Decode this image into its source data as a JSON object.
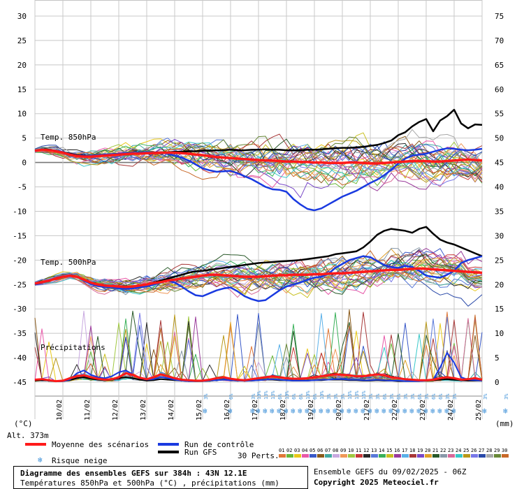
{
  "chart_data": {
    "type": "line",
    "title": "Diagramme des ensembles GEFS sur 384h : 43N 12.1E",
    "subtitle": "Températures 850hPa et 500hPa (°C) , précipitations (mm)",
    "y_left_ticks": [
      "30",
      "25",
      "20",
      "15",
      "10",
      "5",
      "0",
      "-5",
      "-10",
      "-15",
      "-20",
      "-25",
      "-30",
      "-35",
      "-40",
      "-45"
    ],
    "y_left_range": [
      -45,
      30
    ],
    "y_right_ticks": [
      "75",
      "70",
      "65",
      "60",
      "55",
      "50",
      "45",
      "40",
      "35",
      "30",
      "25",
      "20",
      "15",
      "10",
      "5",
      "0"
    ],
    "y_right_range": [
      0,
      75
    ],
    "y_left_unit": "(°C)",
    "y_right_unit": "(mm)",
    "altitude": "Alt. 373m",
    "x_tick_labels": [
      "10/02",
      "11/02",
      "12/02",
      "13/02",
      "14/02",
      "15/02",
      "16/02",
      "17/02",
      "18/02",
      "19/02",
      "20/02",
      "21/02",
      "22/02",
      "23/02",
      "24/02",
      "25/02"
    ],
    "section_labels": {
      "t850": "Temp. 850hPa",
      "t500": "Temp. 500hPa",
      "precip": "Précipitations"
    },
    "legend": {
      "mean": "Moyenne des scénarios",
      "control": "Run de contrôle",
      "gfs": "Run GFS",
      "snow": "Risque neige",
      "perts": "30 Perts."
    },
    "pert_labels": [
      "01",
      "02",
      "03",
      "04",
      "05",
      "06",
      "07",
      "08",
      "09",
      "10",
      "11",
      "12",
      "13",
      "14",
      "15",
      "16",
      "17",
      "18",
      "19",
      "20",
      "21",
      "22",
      "23",
      "24",
      "25",
      "26",
      "27",
      "28",
      "29",
      "30"
    ],
    "pert_colors": [
      "#e07838",
      "#68b838",
      "#e8c818",
      "#e858a8",
      "#3858c8",
      "#8a5a1a",
      "#40a8a0",
      "#c8a8e0",
      "#f09858",
      "#a0c840",
      "#c83838",
      "#282828",
      "#5878d8",
      "#38b058",
      "#c8c020",
      "#9a3a9a",
      "#5ab0e8",
      "#a83838",
      "#7848c8",
      "#e0a028",
      "#285828",
      "#8898a8",
      "#d86898",
      "#38c8c8",
      "#b89818",
      "#7878e8",
      "#2848a8",
      "#a8a8a8",
      "#688838",
      "#c86828"
    ],
    "colors": {
      "mean": "#ff1a1a",
      "control": "#1a3ae0",
      "gfs": "#000000",
      "snow": "#3a8fd8"
    },
    "n_steps": 65,
    "t850": {
      "mean": [
        2.4,
        2.6,
        2.5,
        2.3,
        2.0,
        1.6,
        1.3,
        1.2,
        1.2,
        1.3,
        1.4,
        1.5,
        1.6,
        1.7,
        1.8,
        1.8,
        1.9,
        1.9,
        2.0,
        2.0,
        2.0,
        1.9,
        1.8,
        1.6,
        1.5,
        1.3,
        1.1,
        1.0,
        0.9,
        0.8,
        0.7,
        0.6,
        0.5,
        0.4,
        0.4,
        0.3,
        0.2,
        0.2,
        0.1,
        0.1,
        0.0,
        0.0,
        -0.1,
        -0.1,
        -0.1,
        0.0,
        0.0,
        -0.1,
        -0.2,
        -0.2,
        -0.1,
        0.0,
        0.1,
        0.2,
        0.3,
        0.3,
        0.3,
        0.2,
        0.2,
        0.3,
        0.4,
        0.5,
        0.6,
        0.5,
        0.4
      ],
      "control": [
        2.4,
        2.6,
        2.5,
        2.4,
        2.1,
        1.7,
        1.4,
        1.3,
        1.4,
        1.5,
        1.6,
        1.7,
        1.8,
        1.9,
        2.0,
        2.0,
        2.1,
        2.0,
        2.0,
        1.8,
        1.4,
        1.0,
        0.4,
        -0.4,
        -1.2,
        -1.6,
        -1.9,
        -1.8,
        -1.7,
        -2.2,
        -2.8,
        -3.4,
        -4.2,
        -5.0,
        -5.5,
        -5.6,
        -6.0,
        -7.5,
        -8.6,
        -9.5,
        -9.8,
        -9.4,
        -8.6,
        -7.8,
        -7.0,
        -6.4,
        -5.8,
        -5.0,
        -4.2,
        -3.5,
        -2.6,
        -1.5,
        -0.2,
        0.8,
        1.4,
        1.6,
        1.8,
        2.2,
        2.6,
        2.9,
        2.8,
        2.6,
        2.5,
        2.6,
        2.8
      ],
      "gfs": [
        2.4,
        2.7,
        2.6,
        2.4,
        2.1,
        1.8,
        1.5,
        1.4,
        1.4,
        1.5,
        1.6,
        1.7,
        1.8,
        1.9,
        2.0,
        2.0,
        2.1,
        2.0,
        2.1,
        2.1,
        2.2,
        2.2,
        2.3,
        2.3,
        2.4,
        2.4,
        2.5,
        2.5,
        2.6,
        2.5,
        2.5,
        2.6,
        2.6,
        2.7,
        2.6,
        2.6,
        2.5,
        2.5,
        2.5,
        2.6,
        2.6,
        2.7,
        2.8,
        2.9,
        3.0,
        3.0,
        3.1,
        3.2,
        3.4,
        3.6,
        4.0,
        4.5,
        5.6,
        6.2,
        7.4,
        8.3,
        8.9,
        6.4,
        8.6,
        9.5,
        10.8,
        8.0,
        7.0,
        7.8,
        7.7
      ]
    },
    "t500": {
      "mean": [
        -24.8,
        -24.5,
        -24.2,
        -23.8,
        -23.4,
        -23.2,
        -23.4,
        -24.0,
        -24.6,
        -25.0,
        -25.2,
        -25.3,
        -25.4,
        -25.5,
        -25.4,
        -25.2,
        -25.0,
        -24.7,
        -24.5,
        -24.2,
        -24.0,
        -23.8,
        -23.6,
        -23.4,
        -23.2,
        -23.0,
        -23.0,
        -23.1,
        -23.2,
        -23.3,
        -23.4,
        -23.4,
        -23.4,
        -23.3,
        -23.2,
        -23.1,
        -23.1,
        -23.0,
        -23.0,
        -23.0,
        -22.9,
        -22.9,
        -22.8,
        -22.7,
        -22.7,
        -22.6,
        -22.5,
        -22.4,
        -22.3,
        -22.2,
        -22.1,
        -22.0,
        -22.0,
        -21.9,
        -21.8,
        -21.7,
        -21.8,
        -21.9,
        -22.0,
        -22.1,
        -22.2,
        -22.3,
        -22.4,
        -22.5,
        -22.6
      ],
      "control": [
        -25.0,
        -24.6,
        -24.2,
        -23.8,
        -23.4,
        -23.2,
        -23.4,
        -24.2,
        -24.9,
        -25.3,
        -25.5,
        -25.6,
        -25.8,
        -25.9,
        -25.8,
        -25.6,
        -25.4,
        -25.0,
        -24.6,
        -24.2,
        -24.6,
        -25.4,
        -26.4,
        -27.2,
        -27.4,
        -26.8,
        -26.2,
        -25.8,
        -25.6,
        -26.4,
        -27.4,
        -28.0,
        -28.4,
        -28.2,
        -27.2,
        -26.2,
        -25.4,
        -25.0,
        -24.6,
        -24.0,
        -23.6,
        -23.4,
        -22.8,
        -21.6,
        -20.8,
        -20.0,
        -19.6,
        -19.2,
        -19.4,
        -20.2,
        -21.0,
        -21.4,
        -21.6,
        -21.2,
        -21.4,
        -22.2,
        -23.2,
        -23.4,
        -23.6,
        -23.0,
        -22.2,
        -20.6,
        -20.0,
        -19.6,
        -19.2
      ],
      "gfs": [
        -25.0,
        -24.6,
        -24.2,
        -23.8,
        -23.4,
        -23.2,
        -23.4,
        -24.1,
        -24.8,
        -25.2,
        -25.4,
        -25.5,
        -25.6,
        -25.6,
        -25.5,
        -25.3,
        -25.0,
        -24.6,
        -24.2,
        -23.8,
        -23.4,
        -23.0,
        -22.6,
        -22.3,
        -22.2,
        -22.0,
        -21.8,
        -21.6,
        -21.4,
        -21.2,
        -21.0,
        -20.8,
        -20.6,
        -20.5,
        -20.4,
        -20.3,
        -20.2,
        -20.1,
        -20.0,
        -19.8,
        -19.6,
        -19.4,
        -19.2,
        -18.8,
        -18.6,
        -18.4,
        -18.2,
        -17.4,
        -16.2,
        -14.8,
        -14.0,
        -13.6,
        -13.8,
        -14.0,
        -14.4,
        -13.6,
        -13.2,
        -14.6,
        -15.8,
        -16.4,
        -16.8,
        -17.4,
        -18.0,
        -18.6,
        -19.2
      ]
    },
    "precip": {
      "mean": [
        0.5,
        0.6,
        0.4,
        0.2,
        0.3,
        0.8,
        1.2,
        1.4,
        1.0,
        0.7,
        0.5,
        0.6,
        1.0,
        1.8,
        1.5,
        0.9,
        0.6,
        1.0,
        1.6,
        1.2,
        0.8,
        0.5,
        0.4,
        0.3,
        0.3,
        0.5,
        0.8,
        1.0,
        0.7,
        0.5,
        0.4,
        0.6,
        0.8,
        1.0,
        1.2,
        1.0,
        0.8,
        0.7,
        0.7,
        0.8,
        1.0,
        1.2,
        1.4,
        1.6,
        1.5,
        1.4,
        1.2,
        1.2,
        1.4,
        1.6,
        1.4,
        1.0,
        0.8,
        0.6,
        0.5,
        0.4,
        0.4,
        0.5,
        0.8,
        1.0,
        0.8,
        0.5,
        0.6,
        0.8,
        0.5
      ],
      "control": [
        0.5,
        0.6,
        0.3,
        0.2,
        0.2,
        0.5,
        1.8,
        2.4,
        1.5,
        1.0,
        0.8,
        1.2,
        2.0,
        2.4,
        1.6,
        0.8,
        0.5,
        0.6,
        1.0,
        0.8,
        0.5,
        0.3,
        0.2,
        0.2,
        0.2,
        0.3,
        0.4,
        0.5,
        0.4,
        0.3,
        0.3,
        0.3,
        0.4,
        0.5,
        0.6,
        0.5,
        0.4,
        0.3,
        0.3,
        0.3,
        0.4,
        0.5,
        0.5,
        0.6,
        0.6,
        0.5,
        0.5,
        0.4,
        0.4,
        0.5,
        0.4,
        0.3,
        0.3,
        0.2,
        0.2,
        0.2,
        0.3,
        0.5,
        3.0,
        6.0,
        4.0,
        1.0,
        0.5,
        0.4,
        0.3
      ],
      "gfs": [
        0.3,
        0.4,
        0.3,
        0.2,
        0.2,
        0.4,
        0.8,
        1.0,
        0.7,
        0.5,
        0.4,
        0.5,
        0.8,
        1.0,
        0.8,
        0.5,
        0.3,
        0.4,
        0.6,
        0.5,
        0.4,
        0.3,
        0.2,
        0.2,
        0.2,
        0.3,
        0.4,
        0.5,
        0.4,
        0.3,
        0.3,
        0.3,
        0.4,
        0.5,
        0.5,
        0.4,
        0.4,
        0.3,
        0.3,
        0.3,
        0.4,
        0.4,
        0.5,
        0.5,
        0.5,
        0.4,
        0.4,
        0.3,
        0.3,
        0.4,
        0.3,
        0.3,
        0.2,
        0.2,
        0.2,
        0.2,
        0.3,
        0.4,
        0.5,
        0.6,
        0.5,
        0.4,
        0.3,
        0.3,
        0.3
      ]
    },
    "snow_risk": [
      {
        "day": 6.1,
        "pct": "3%"
      },
      {
        "day": 7.0,
        "pct": "6%"
      },
      {
        "day": 7.8,
        "pct": "3%"
      },
      {
        "day": 8.0,
        "pct": "10%"
      },
      {
        "day": 8.25,
        "pct": "13%"
      },
      {
        "day": 8.5,
        "pct": "13%"
      },
      {
        "day": 8.75,
        "pct": "6%"
      },
      {
        "day": 9.0,
        "pct": "10%"
      },
      {
        "day": 9.25,
        "pct": "6%"
      },
      {
        "day": 9.5,
        "pct": "6%"
      },
      {
        "day": 9.75,
        "pct": "10%"
      },
      {
        "day": 10.0,
        "pct": "6%"
      },
      {
        "day": 10.25,
        "pct": "10%"
      },
      {
        "day": 10.5,
        "pct": "3%"
      },
      {
        "day": 10.75,
        "pct": "3%"
      },
      {
        "day": 11.0,
        "pct": "3%"
      },
      {
        "day": 11.25,
        "pct": "16%"
      },
      {
        "day": 11.5,
        "pct": "13%"
      },
      {
        "day": 11.75,
        "pct": "16%"
      },
      {
        "day": 12.0,
        "pct": "3%"
      },
      {
        "day": 12.25,
        "pct": "3%"
      },
      {
        "day": 12.5,
        "pct": "6%"
      },
      {
        "day": 12.75,
        "pct": "3%"
      },
      {
        "day": 13.0,
        "pct": "6%"
      },
      {
        "day": 13.25,
        "pct": "3%"
      },
      {
        "day": 13.5,
        "pct": "3%"
      },
      {
        "day": 13.75,
        "pct": "6%"
      },
      {
        "day": 14.0,
        "pct": "3%"
      },
      {
        "day": 14.25,
        "pct": "6%"
      },
      {
        "day": 14.5,
        "pct": "6%"
      },
      {
        "day": 14.75,
        "pct": "3%"
      },
      {
        "day": 15.0,
        "pct": "3%"
      },
      {
        "day": 16.1,
        "pct": "3%"
      },
      {
        "day": 16.85,
        "pct": "3%"
      }
    ]
  },
  "footer": {
    "title": "Diagramme des ensembles GEFS sur 384h : 43N 12.1E",
    "subtitle": "Températures 850hPa et 500hPa (°C) , précipitations (mm)",
    "run_info": "Ensemble GEFS du 09/02/2025 - 06Z",
    "copyright": "Copyright 2025 Meteociel.fr"
  }
}
